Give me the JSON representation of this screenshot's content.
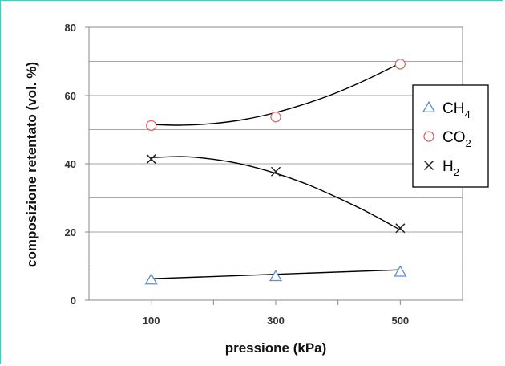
{
  "chart_data": {
    "type": "scatter",
    "title": "",
    "xlabel": "pressione (kPa)",
    "ylabel": "composizione retentato (vol. %)",
    "x_ticks": [
      "100",
      "300",
      "500"
    ],
    "y_ticks": [
      "0",
      "20",
      "40",
      "60",
      "80"
    ],
    "xlim": [
      0,
      600
    ],
    "ylim": [
      0,
      80
    ],
    "grid": "horizontal",
    "legend_position": "right",
    "series": [
      {
        "name": "CH4",
        "label_main": "CH",
        "label_sub": "4",
        "marker": "triangle",
        "color": "#5b8fd6",
        "x": [
          100,
          300,
          500
        ],
        "y": [
          6,
          7,
          8.3
        ],
        "trend": [
          [
            100,
            6.3
          ],
          [
            500,
            8.9
          ]
        ]
      },
      {
        "name": "CO2",
        "label_main": "CO",
        "label_sub": "2",
        "marker": "circle",
        "color": "#e06666",
        "x": [
          100,
          300,
          500
        ],
        "y": [
          51.2,
          53.7,
          69.2
        ],
        "trend": [
          [
            100,
            51.5
          ],
          [
            150,
            51.3
          ],
          [
            200,
            51.8
          ],
          [
            250,
            53
          ],
          [
            300,
            55
          ],
          [
            350,
            57.7
          ],
          [
            400,
            61
          ],
          [
            450,
            65
          ],
          [
            500,
            69.5
          ]
        ]
      },
      {
        "name": "H2",
        "label_main": "H",
        "label_sub": "2",
        "marker": "x",
        "color": "#222222",
        "x": [
          100,
          300,
          500
        ],
        "y": [
          41.4,
          37.7,
          21.1
        ],
        "trend": [
          [
            100,
            41.8
          ],
          [
            150,
            42.1
          ],
          [
            200,
            41.3
          ],
          [
            250,
            39.7
          ],
          [
            300,
            37.2
          ],
          [
            350,
            34
          ],
          [
            400,
            30
          ],
          [
            450,
            25.6
          ],
          [
            500,
            20.6
          ]
        ]
      }
    ]
  }
}
